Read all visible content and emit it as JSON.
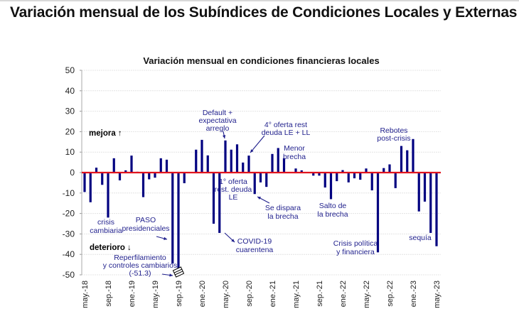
{
  "page": {
    "title": "Variación mensual de los Subíndices de Condiciones Locales y Externas"
  },
  "chart_data": {
    "type": "bar",
    "title": "Variación mensual en condiciones financieras locales",
    "xlabel": "",
    "ylabel": "",
    "ylim": [
      -50,
      50
    ],
    "yticks": [
      50,
      40,
      30,
      20,
      10,
      0,
      -10,
      -20,
      -30,
      -40,
      -50
    ],
    "grid": true,
    "bar_color": "#000080",
    "zero_line_color": "#e0141e",
    "x_tick_labels": [
      "may.-18",
      "sep.-18",
      "ene.-19",
      "may.-19",
      "sep.-19",
      "ene.-20",
      "may.-20",
      "sep.-20",
      "ene.-21",
      "may.-21",
      "sep.-21",
      "ene.-22",
      "may.-22",
      "sep.-22",
      "ene.-23",
      "may.-23"
    ],
    "x_tick_every": 4,
    "categories": [
      "may.-18",
      "jun.-18",
      "jul.-18",
      "ago.-18",
      "sep.-18",
      "oct.-18",
      "nov.-18",
      "dic.-18",
      "ene.-19",
      "feb.-19",
      "mar.-19",
      "abr.-19",
      "may.-19",
      "jun.-19",
      "jul.-19",
      "ago.-19",
      "sep.-19",
      "oct.-19",
      "nov.-19",
      "dic.-19",
      "ene.-20",
      "feb.-20",
      "mar.-20",
      "abr.-20",
      "may.-20",
      "jun.-20",
      "jul.-20",
      "ago.-20",
      "sep.-20",
      "oct.-20",
      "nov.-20",
      "dic.-20",
      "ene.-21",
      "feb.-21",
      "mar.-21",
      "abr.-21",
      "may.-21",
      "jun.-21",
      "jul.-21",
      "ago.-21",
      "sep.-21",
      "oct.-21",
      "nov.-21",
      "dic.-21",
      "ene.-22",
      "feb.-22",
      "mar.-22",
      "abr.-22",
      "may.-22",
      "jun.-22",
      "jul.-22",
      "ago.-22",
      "sep.-22",
      "oct.-22",
      "nov.-22",
      "dic.-22",
      "ene.-23",
      "feb.-23",
      "mar.-23",
      "abr.-23",
      "may.-23"
    ],
    "values": [
      -9.5,
      -14.5,
      2.4,
      -6.0,
      -22.0,
      7.0,
      -3.8,
      1.1,
      8.3,
      0.4,
      -12.0,
      -3.3,
      -2.5,
      7.0,
      6.3,
      -44.5,
      -51.3,
      -5.2,
      0.0,
      11.2,
      16.0,
      8.4,
      -25.0,
      -29.5,
      15.7,
      11.2,
      13.8,
      4.9,
      8.3,
      -10.5,
      -4.8,
      -7.0,
      9.1,
      12.0,
      7.0,
      0.0,
      2.0,
      1.1,
      -0.3,
      -1.5,
      -1.5,
      -7.3,
      -13.0,
      -4.2,
      1.2,
      -4.8,
      -2.8,
      -3.5,
      2.0,
      -8.7,
      -39.0,
      2.2,
      4.0,
      -7.6,
      13.0,
      10.9,
      16.4,
      -19.0,
      -14.2,
      -29.5,
      -36.0
    ],
    "clipped_values_note": "(-51.3)",
    "annotations": [
      {
        "id": "mejora",
        "text": "mejora ↑",
        "style": "bold"
      },
      {
        "id": "deterioro",
        "text": "deterioro ↓",
        "style": "bold"
      },
      {
        "id": "crisis-cambiaria",
        "lines": [
          "crisis",
          "cambiaria"
        ]
      },
      {
        "id": "paso",
        "lines": [
          "PASO",
          "presidenciales"
        ]
      },
      {
        "id": "reperfilamiento",
        "lines": [
          "Reperfilamiento",
          "y controles cambiarios",
          "(-51.3)"
        ]
      },
      {
        "id": "default",
        "lines": [
          "Default +",
          "expectativa",
          "arreglo"
        ]
      },
      {
        "id": "covid",
        "lines": [
          "COVID-19",
          "cuarentena"
        ]
      },
      {
        "id": "primera-oferta",
        "lines": [
          "1° oferta",
          "rest. deuda",
          "LE"
        ]
      },
      {
        "id": "cuarta-oferta",
        "lines": [
          "4° oferta rest",
          "deuda LE + LL"
        ]
      },
      {
        "id": "se-dispara",
        "lines": [
          "Se dispara",
          "la brecha"
        ]
      },
      {
        "id": "menor-brecha",
        "lines": [
          "Menor",
          "brecha"
        ]
      },
      {
        "id": "salto-brecha",
        "lines": [
          "Salto de",
          "la brecha"
        ]
      },
      {
        "id": "crisis-politica",
        "lines": [
          "Crisis política",
          "y financiera"
        ]
      },
      {
        "id": "rebotes",
        "lines": [
          "Rebotes",
          "post-crisis"
        ]
      },
      {
        "id": "sequia",
        "lines": [
          "sequía"
        ]
      }
    ]
  }
}
